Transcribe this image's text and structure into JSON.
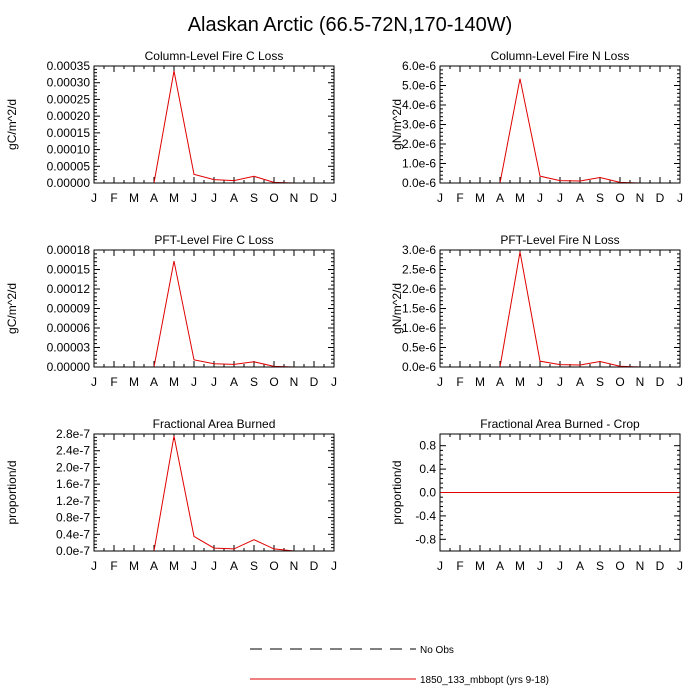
{
  "figure": {
    "title": "Alaskan Arctic (66.5-72N,170-140W)"
  },
  "months": [
    "J",
    "F",
    "M",
    "A",
    "M",
    "J",
    "J",
    "A",
    "S",
    "O",
    "N",
    "D",
    "J"
  ],
  "legend": {
    "entries": [
      {
        "label": "No Obs",
        "style": "dashed",
        "color": "#000000"
      },
      {
        "label": "1850_133_mbbopt (yrs 9-18)",
        "style": "solid",
        "color": "#e00000"
      }
    ]
  },
  "chart_data": [
    {
      "type": "line",
      "title": "Column-Level Fire C Loss",
      "ylabel": "gC/m^2/d",
      "ylim": [
        0,
        0.00035
      ],
      "yticks": [
        "0.00000",
        "0.00005",
        "0.00010",
        "0.00015",
        "0.00020",
        "0.00025",
        "0.00030",
        "0.00035"
      ],
      "series": [
        {
          "color": "#e00000",
          "values": [
            0,
            0,
            0,
            0,
            0.000335,
            2.6e-05,
            1e-05,
            7e-06,
            2e-05,
            2e-06,
            0,
            0,
            0
          ]
        }
      ]
    },
    {
      "type": "line",
      "title": "Column-Level Fire N Loss",
      "ylabel": "gN/m^2/d",
      "ylim": [
        0,
        6e-06
      ],
      "yticks": [
        "0.0e-6",
        "1.0e-6",
        "2.0e-6",
        "3.0e-6",
        "4.0e-6",
        "5.0e-6",
        "6.0e-6"
      ],
      "series": [
        {
          "color": "#e00000",
          "values": [
            0,
            0,
            0,
            0,
            5.35e-06,
            3.5e-07,
            1.2e-07,
            1e-07,
            2.8e-07,
            3e-08,
            0,
            0,
            0
          ]
        }
      ]
    },
    {
      "type": "line",
      "title": "PFT-Level Fire C Loss",
      "ylabel": "gC/m^2/d",
      "ylim": [
        0,
        0.00018
      ],
      "yticks": [
        "0.00000",
        "0.00003",
        "0.00006",
        "0.00009",
        "0.00012",
        "0.00015",
        "0.00018"
      ],
      "series": [
        {
          "color": "#e00000",
          "values": [
            0,
            0,
            0,
            0,
            0.000163,
            1.1e-05,
            5e-06,
            4e-06,
            8e-06,
            1e-06,
            0,
            0,
            0
          ]
        }
      ]
    },
    {
      "type": "line",
      "title": "PFT-Level Fire N Loss",
      "ylabel": "gN/m^2/d",
      "ylim": [
        0,
        3e-06
      ],
      "yticks": [
        "0.0e-6",
        "0.5e-6",
        "1.0e-6",
        "1.5e-6",
        "2.0e-6",
        "2.5e-6",
        "3.0e-6"
      ],
      "series": [
        {
          "color": "#e00000",
          "values": [
            0,
            0,
            0,
            0,
            2.95e-06,
            1.5e-07,
            6e-08,
            5e-08,
            1.4e-07,
            2e-08,
            0,
            0,
            0
          ]
        }
      ]
    },
    {
      "type": "line",
      "title": "Fractional Area Burned",
      "ylabel": "proportion/d",
      "ylim": [
        0,
        2.8e-07
      ],
      "yticks": [
        "0.0e-7",
        "0.4e-7",
        "0.8e-7",
        "1.2e-7",
        "1.6e-7",
        "2.0e-7",
        "2.4e-7",
        "2.8e-7"
      ],
      "series": [
        {
          "color": "#e00000",
          "values": [
            0,
            0,
            0,
            0,
            2.75e-07,
            3.5e-08,
            7e-09,
            5e-09,
            2.7e-08,
            5e-09,
            0,
            0,
            0
          ]
        }
      ]
    },
    {
      "type": "line",
      "title": "Fractional Area Burned - Crop",
      "ylabel": "proportion/d",
      "ylim": [
        -1.0,
        1.0
      ],
      "yticks": [
        "-0.8",
        "-0.4",
        "0.0",
        "0.4",
        "0.8"
      ],
      "ytick_values": [
        -0.8,
        -0.4,
        0.0,
        0.4,
        0.8
      ],
      "series": [
        {
          "color": "#e00000",
          "values": [
            0,
            0,
            0,
            0,
            0,
            0,
            0,
            0,
            0,
            0,
            0,
            0,
            0
          ]
        }
      ]
    }
  ]
}
